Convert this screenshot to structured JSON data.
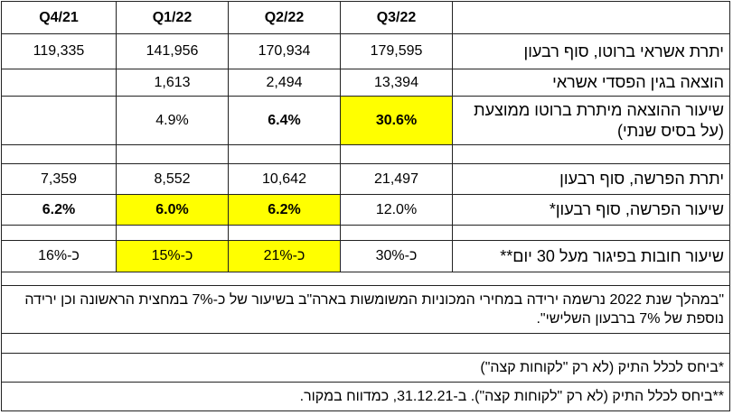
{
  "headers": {
    "col1": "Q3/22",
    "col2": "Q2/22",
    "col3": "Q1/22",
    "col4": "Q4/21"
  },
  "rows": [
    {
      "label": "יתרת אשראי ברוטו, סוף רבעון",
      "c1": "179,595",
      "c2": "170,934",
      "c3": "141,956",
      "c4": "119,335"
    },
    {
      "label": "הוצאה בגין הפסדי אשראי",
      "c1": "13,394",
      "c2": "2,494",
      "c3": "1,613",
      "c4": ""
    },
    {
      "label": "שיעור ההוצאה מיתרת ברוטו ממוצעת (על בסיס שנתי)",
      "c1": "30.6%",
      "c2": "6.4%",
      "c3": "4.9%",
      "c4": ""
    },
    {
      "label": "יתרת הפרשה, סוף רבעון",
      "c1": "21,497",
      "c2": "10,642",
      "c3": "8,552",
      "c4": "7,359"
    },
    {
      "label": "שיעור הפרשה, סוף רבעון*",
      "c1": "12.0%",
      "c2": "6.2%",
      "c3": "6.0%",
      "c4": "6.2%"
    },
    {
      "label": "שיעור חובות בפיגור מעל 30 יום**",
      "c1": "כ-30%",
      "c2": "כ-21%",
      "c3": "כ-15%",
      "c4": "כ-16%"
    }
  ],
  "notes": {
    "quote": "\"במהלך שנת 2022 נרשמה ירידה במחירי המכוניות המשומשות בארה\"ב בשיעור של כ-7% במחצית הראשונה וכן ירידה נוספת של 7% ברבעון השלישי\".",
    "footnote1": "*ביחס לכלל התיק (לא רק \"לקוחות קצה\")",
    "footnote2": "**ביחס לכלל התיק (לא רק \"לקוחות קצה\"). ב-31.12.21, כמדווח במקור."
  },
  "colors": {
    "highlight": "#ffff00"
  }
}
